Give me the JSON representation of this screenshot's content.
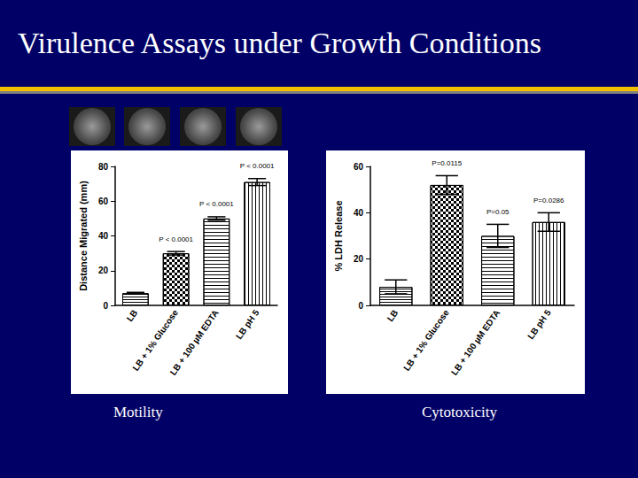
{
  "title": "Virulence Assays under Growth Conditions",
  "chart_data": [
    {
      "type": "bar",
      "title": "Motility",
      "categories": [
        "LB",
        "LB + 1% Glucose",
        "LB + 100 µM EDTA",
        "LB pH 5"
      ],
      "values": [
        7,
        30,
        50,
        71
      ],
      "errors": [
        0.5,
        1,
        1,
        2
      ],
      "annotations": [
        null,
        "P < 0.0001",
        "P < 0.0001",
        "P < 0.0001"
      ],
      "ylabel": "Distance Migrated (mm)",
      "color": "#ffffff",
      "ylim": [
        0,
        80
      ],
      "yticks": [
        0,
        20,
        40,
        60,
        80
      ]
    },
    {
      "type": "bar",
      "title": "Cytotoxicity",
      "categories": [
        "LB",
        "LB + 1% Glucose",
        "LB + 100 µM EDTA",
        "LB pH 5"
      ],
      "values": [
        8,
        52,
        30,
        36
      ],
      "errors": [
        3,
        4,
        5,
        4
      ],
      "annotations": [
        null,
        "P=0.0115",
        "P=0.05",
        "P=0.0286"
      ],
      "ylabel": "% LDH Release",
      "color": "#ffffff",
      "ylim": [
        0,
        60
      ],
      "yticks": [
        0,
        20,
        40,
        60
      ]
    }
  ]
}
